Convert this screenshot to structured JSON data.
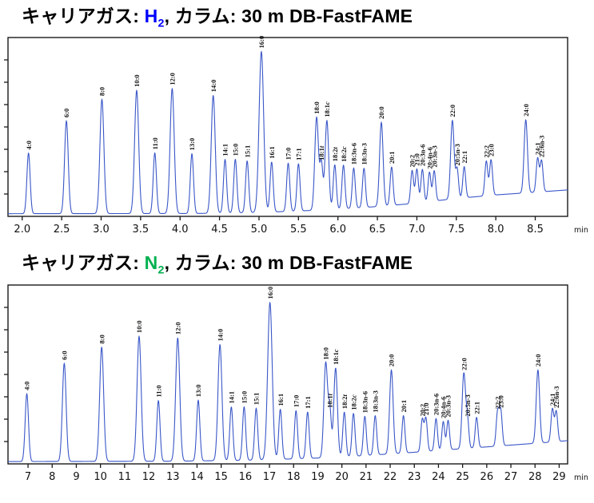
{
  "chart_data": [
    {
      "type": "line",
      "name": "gc-chromatogram-hydrogen-carrier",
      "title": {
        "prefix": "キャリアガス: ",
        "gas": "H",
        "gas_sub": "2",
        "gas_color": "#0000FF",
        "suffix": ", カラム: 30 m DB-FastFAME"
      },
      "trace_color": "#3A57C8",
      "frame_color": "#1a1a1a",
      "axis": {
        "xmin": 1.82,
        "xmax": 8.91,
        "unit": "min",
        "ticks": [
          2.0,
          2.5,
          3.0,
          3.5,
          4.0,
          4.5,
          5.0,
          5.5,
          6.0,
          6.5,
          7.0,
          7.5,
          8.0,
          8.5
        ],
        "tick_labels": [
          "2.0",
          "2.5",
          "3.0",
          "3.5",
          "4.0",
          "4.5",
          "5.0",
          "5.5",
          "6.0",
          "6.5",
          "7.0",
          "7.5",
          "8.0",
          "8.5"
        ],
        "grid": "off",
        "y_axis_labels": "none"
      },
      "baseline_points": [
        [
          1.82,
          0.015
        ],
        [
          4.2,
          0.016
        ],
        [
          5.0,
          0.022
        ],
        [
          5.5,
          0.03
        ],
        [
          6.0,
          0.04
        ],
        [
          6.5,
          0.055
        ],
        [
          6.9,
          0.07
        ],
        [
          7.2,
          0.085
        ],
        [
          7.5,
          0.1
        ],
        [
          8.0,
          0.12
        ],
        [
          8.5,
          0.135
        ],
        [
          8.91,
          0.148
        ]
      ],
      "peaks": [
        {
          "rt": 2.08,
          "h": 0.34,
          "label": "4:0"
        },
        {
          "rt": 2.56,
          "h": 0.52,
          "label": "6:0"
        },
        {
          "rt": 3.01,
          "h": 0.64,
          "label": "8:0"
        },
        {
          "rt": 3.45,
          "h": 0.69,
          "label": "10:0"
        },
        {
          "rt": 3.68,
          "h": 0.34,
          "label": "11:0"
        },
        {
          "rt": 3.9,
          "h": 0.7,
          "label": "12:0"
        },
        {
          "rt": 4.15,
          "h": 0.335,
          "label": "13:0"
        },
        {
          "rt": 4.42,
          "h": 0.66,
          "label": "14:0"
        },
        {
          "rt": 4.57,
          "h": 0.3,
          "label": "14:1"
        },
        {
          "rt": 4.7,
          "h": 0.3,
          "label": "15:0"
        },
        {
          "rt": 4.85,
          "h": 0.29,
          "label": "15:1"
        },
        {
          "rt": 5.03,
          "h": 0.9,
          "label": "16:0"
        },
        {
          "rt": 5.16,
          "h": 0.28,
          "label": "16:1"
        },
        {
          "rt": 5.37,
          "h": 0.27,
          "label": "17:0"
        },
        {
          "rt": 5.5,
          "h": 0.265,
          "label": "17:1"
        },
        {
          "rt": 5.73,
          "h": 0.52,
          "label": "18:0"
        },
        {
          "rt": 5.79,
          "h": 0.26,
          "label": "18:1t"
        },
        {
          "rt": 5.86,
          "h": 0.5,
          "label": "18:1c"
        },
        {
          "rt": 5.96,
          "h": 0.25,
          "label": "18:2t"
        },
        {
          "rt": 6.07,
          "h": 0.245,
          "label": "18:2c"
        },
        {
          "rt": 6.2,
          "h": 0.225,
          "label": "18:3n-6"
        },
        {
          "rt": 6.33,
          "h": 0.22,
          "label": "18:3n-3"
        },
        {
          "rt": 6.55,
          "h": 0.47,
          "label": "20:0"
        },
        {
          "rt": 6.68,
          "h": 0.215,
          "label": "20:1"
        },
        {
          "rt": 6.94,
          "h": 0.185,
          "label": "20:2"
        },
        {
          "rt": 7.0,
          "h": 0.19,
          "label": "21:0"
        },
        {
          "rt": 7.07,
          "h": 0.185,
          "label": "20:3n-6"
        },
        {
          "rt": 7.16,
          "h": 0.165,
          "label": "20:4n-6"
        },
        {
          "rt": 7.22,
          "h": 0.17,
          "label": "20:3n-3"
        },
        {
          "rt": 7.45,
          "h": 0.44,
          "label": "22:0"
        },
        {
          "rt": 7.51,
          "h": 0.165,
          "label": "20:5n-3"
        },
        {
          "rt": 7.6,
          "h": 0.175,
          "label": "22:1"
        },
        {
          "rt": 7.88,
          "h": 0.195,
          "label": "22:2"
        },
        {
          "rt": 7.94,
          "h": 0.2,
          "label": "23:0"
        },
        {
          "rt": 8.38,
          "h": 0.41,
          "label": "24:0"
        },
        {
          "rt": 8.53,
          "h": 0.19,
          "label": "24:1"
        },
        {
          "rt": 8.58,
          "h": 0.175,
          "label": "22:6n-3"
        }
      ]
    },
    {
      "type": "line",
      "name": "gc-chromatogram-nitrogen-carrier",
      "title": {
        "prefix": "キャリアガス: ",
        "gas": "N",
        "gas_sub": "2",
        "gas_color": "#00B050",
        "suffix": ", カラム: 30 m DB-FastFAME"
      },
      "trace_color": "#3A57C8",
      "frame_color": "#1a1a1a",
      "axis": {
        "xmin": 6.17,
        "xmax": 29.35,
        "unit": "min",
        "ticks": [
          7,
          8,
          9,
          10,
          11,
          12,
          13,
          14,
          15,
          16,
          17,
          18,
          19,
          20,
          21,
          22,
          23,
          24,
          25,
          26,
          27,
          28,
          29
        ],
        "tick_labels": [
          "7",
          "8",
          "9",
          "10",
          "11",
          "12",
          "13",
          "14",
          "15",
          "16",
          "17",
          "18",
          "19",
          "20",
          "21",
          "22",
          "23",
          "24",
          "25",
          "26",
          "27",
          "28",
          "29"
        ],
        "grid": "off",
        "y_axis_labels": "none"
      },
      "baseline_points": [
        [
          6.17,
          0.013
        ],
        [
          13.0,
          0.015
        ],
        [
          16.0,
          0.02
        ],
        [
          18.0,
          0.028
        ],
        [
          19.5,
          0.035
        ],
        [
          21.0,
          0.047
        ],
        [
          22.5,
          0.06
        ],
        [
          24.0,
          0.075
        ],
        [
          25.5,
          0.09
        ],
        [
          27.0,
          0.105
        ],
        [
          28.5,
          0.12
        ],
        [
          29.35,
          0.13
        ]
      ],
      "peaks": [
        {
          "rt": 6.95,
          "h": 0.38,
          "label": "4:0"
        },
        {
          "rt": 8.5,
          "h": 0.55,
          "label": "6:0"
        },
        {
          "rt": 10.05,
          "h": 0.64,
          "label": "8:0"
        },
        {
          "rt": 11.6,
          "h": 0.7,
          "label": "10:0"
        },
        {
          "rt": 12.4,
          "h": 0.34,
          "label": "11:0"
        },
        {
          "rt": 13.2,
          "h": 0.69,
          "label": "12:0"
        },
        {
          "rt": 14.05,
          "h": 0.34,
          "label": "13:0"
        },
        {
          "rt": 14.95,
          "h": 0.65,
          "label": "14:0"
        },
        {
          "rt": 15.42,
          "h": 0.3,
          "label": "14:1"
        },
        {
          "rt": 15.95,
          "h": 0.3,
          "label": "15:0"
        },
        {
          "rt": 16.45,
          "h": 0.29,
          "label": "15:1"
        },
        {
          "rt": 17.02,
          "h": 0.88,
          "label": "16:0"
        },
        {
          "rt": 17.45,
          "h": 0.28,
          "label": "16:1"
        },
        {
          "rt": 18.1,
          "h": 0.27,
          "label": "17:0"
        },
        {
          "rt": 18.58,
          "h": 0.26,
          "label": "17:1"
        },
        {
          "rt": 19.33,
          "h": 0.53,
          "label": "18:0"
        },
        {
          "rt": 19.5,
          "h": 0.26,
          "label": "18:1t"
        },
        {
          "rt": 19.74,
          "h": 0.5,
          "label": "18:1c"
        },
        {
          "rt": 20.1,
          "h": 0.25,
          "label": "18:2t"
        },
        {
          "rt": 20.48,
          "h": 0.24,
          "label": "18:2c"
        },
        {
          "rt": 20.95,
          "h": 0.22,
          "label": "18:3n-6"
        },
        {
          "rt": 21.38,
          "h": 0.22,
          "label": "18:3n-3"
        },
        {
          "rt": 22.05,
          "h": 0.47,
          "label": "20:0"
        },
        {
          "rt": 22.55,
          "h": 0.21,
          "label": "20:1"
        },
        {
          "rt": 23.33,
          "h": 0.18,
          "label": "20:2"
        },
        {
          "rt": 23.48,
          "h": 0.185,
          "label": "21:0"
        },
        {
          "rt": 23.9,
          "h": 0.18,
          "label": "20:3n-6"
        },
        {
          "rt": 24.2,
          "h": 0.16,
          "label": "20:4n-6"
        },
        {
          "rt": 24.4,
          "h": 0.165,
          "label": "20:3n-3"
        },
        {
          "rt": 25.05,
          "h": 0.42,
          "label": "22:0"
        },
        {
          "rt": 25.2,
          "h": 0.16,
          "label": "20:5n-3"
        },
        {
          "rt": 25.58,
          "h": 0.17,
          "label": "22:1"
        },
        {
          "rt": 26.45,
          "h": 0.19,
          "label": "22:2"
        },
        {
          "rt": 26.58,
          "h": 0.195,
          "label": "23:0"
        },
        {
          "rt": 28.12,
          "h": 0.41,
          "label": "24:0"
        },
        {
          "rt": 28.72,
          "h": 0.185,
          "label": "24:1"
        },
        {
          "rt": 28.88,
          "h": 0.17,
          "label": "22:6n-3"
        }
      ]
    }
  ]
}
